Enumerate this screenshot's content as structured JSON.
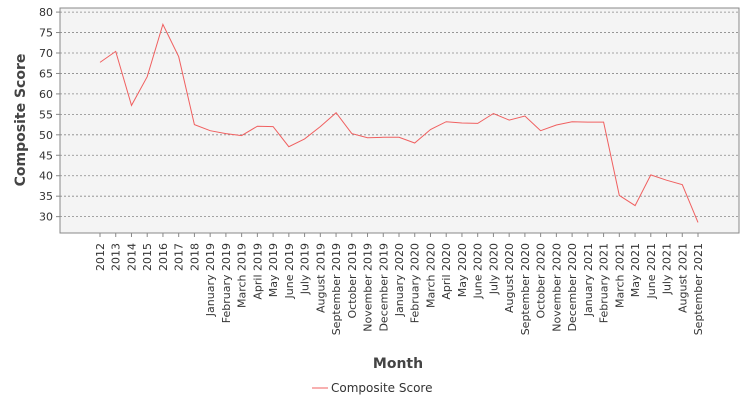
{
  "chart_data": {
    "type": "line",
    "xlabel": "Month",
    "ylabel": "Composite Score",
    "ylim": [
      26,
      81
    ],
    "yticks": [
      30,
      35,
      40,
      45,
      50,
      55,
      60,
      65,
      70,
      75,
      80
    ],
    "grid": true,
    "legend_position": "bottom",
    "categories": [
      "2012",
      "2013",
      "2014",
      "2015",
      "2016",
      "2017",
      "2018",
      "January 2019",
      "February 2019",
      "March 2019",
      "April 2019",
      "May 2019",
      "June 2019",
      "July 2019",
      "August 2019",
      "September 2019",
      "October 2019",
      "November 2019",
      "December 2019",
      "January 2020",
      "February 2020",
      "March 2020",
      "April 2020",
      "May 2020",
      "June 2020",
      "July 2020",
      "August 2020",
      "September 2020",
      "October 2020",
      "November 2020",
      "December 2020",
      "January 2021",
      "February 2021",
      "March 2021",
      "May 2021",
      "June 2021",
      "July 2021",
      "August 2021",
      "September 2021"
    ],
    "series": [
      {
        "name": "Composite Score",
        "color": "#f06060",
        "values": [
          67.7,
          70.4,
          57.2,
          64.2,
          77.0,
          69.1,
          52.5,
          51.0,
          50.3,
          49.8,
          52.1,
          52.0,
          47.1,
          49.0,
          52.0,
          55.4,
          50.3,
          49.3,
          49.4,
          49.4,
          48.0,
          51.3,
          53.2,
          52.9,
          52.8,
          55.2,
          53.6,
          54.6,
          51.0,
          52.4,
          53.2,
          53.1,
          53.1,
          35.2,
          32.7,
          40.2,
          38.9,
          37.8,
          28.6
        ]
      }
    ]
  }
}
